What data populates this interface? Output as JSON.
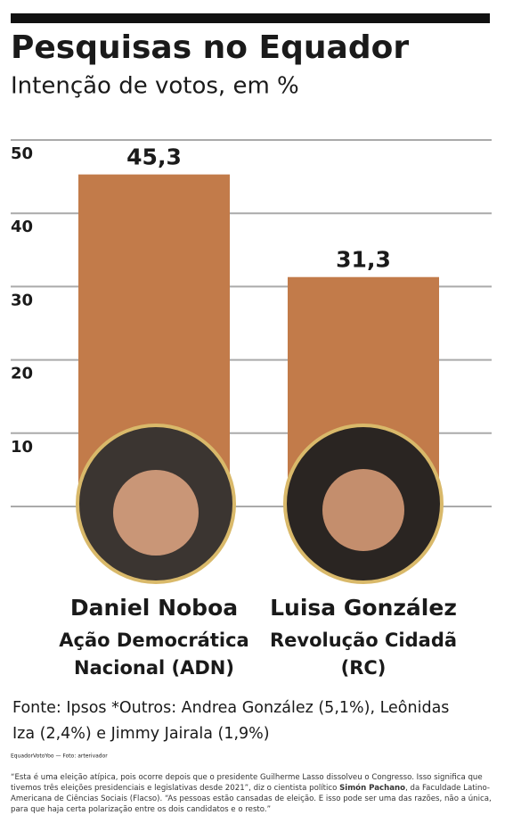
{
  "chart_data": {
    "type": "bar",
    "title": "Pesquisas no Equador",
    "subtitle": "Intenção de votos, em %",
    "categories": [
      "Daniel Noboa",
      "Luisa González"
    ],
    "party_lines": [
      [
        "Ação Democrática",
        "Nacional (ADN)"
      ],
      [
        "Revolução Cidadã",
        "(RC)"
      ]
    ],
    "values": [
      45.3,
      31.3
    ],
    "value_labels": [
      "45,3",
      "31,3"
    ],
    "color": "#c27b4a",
    "ylim": [
      0,
      50
    ],
    "yticks": [
      10,
      20,
      30,
      40,
      50
    ],
    "grid": true,
    "source_lines": [
      "Fonte: Ipsos   *Outros: Andrea González (5,1%), Leônidas",
      "Iza (2,4%) e Jimmy Jairala (1,9%)"
    ]
  },
  "credit": "EquadorVotoYoo — Foto: arterivador",
  "paragraph": {
    "before": "“Esta é uma eleição atípica, pois ocorre depois que o presidente Guilherme Lasso dissolveu o Congresso. Isso significa que tivemos três eleições presidenciais e legislativas desde 2021”, diz o cientista político ",
    "bold": "Simón Pachano",
    "after": ", da Faculdade Latino-Americana de Ciências Sociais (Flacso). “As pessoas estão cansadas de eleição. E isso pode ser uma das razões, não a única, para que haja certa polarização entre os dois candidatos e o resto.”"
  }
}
